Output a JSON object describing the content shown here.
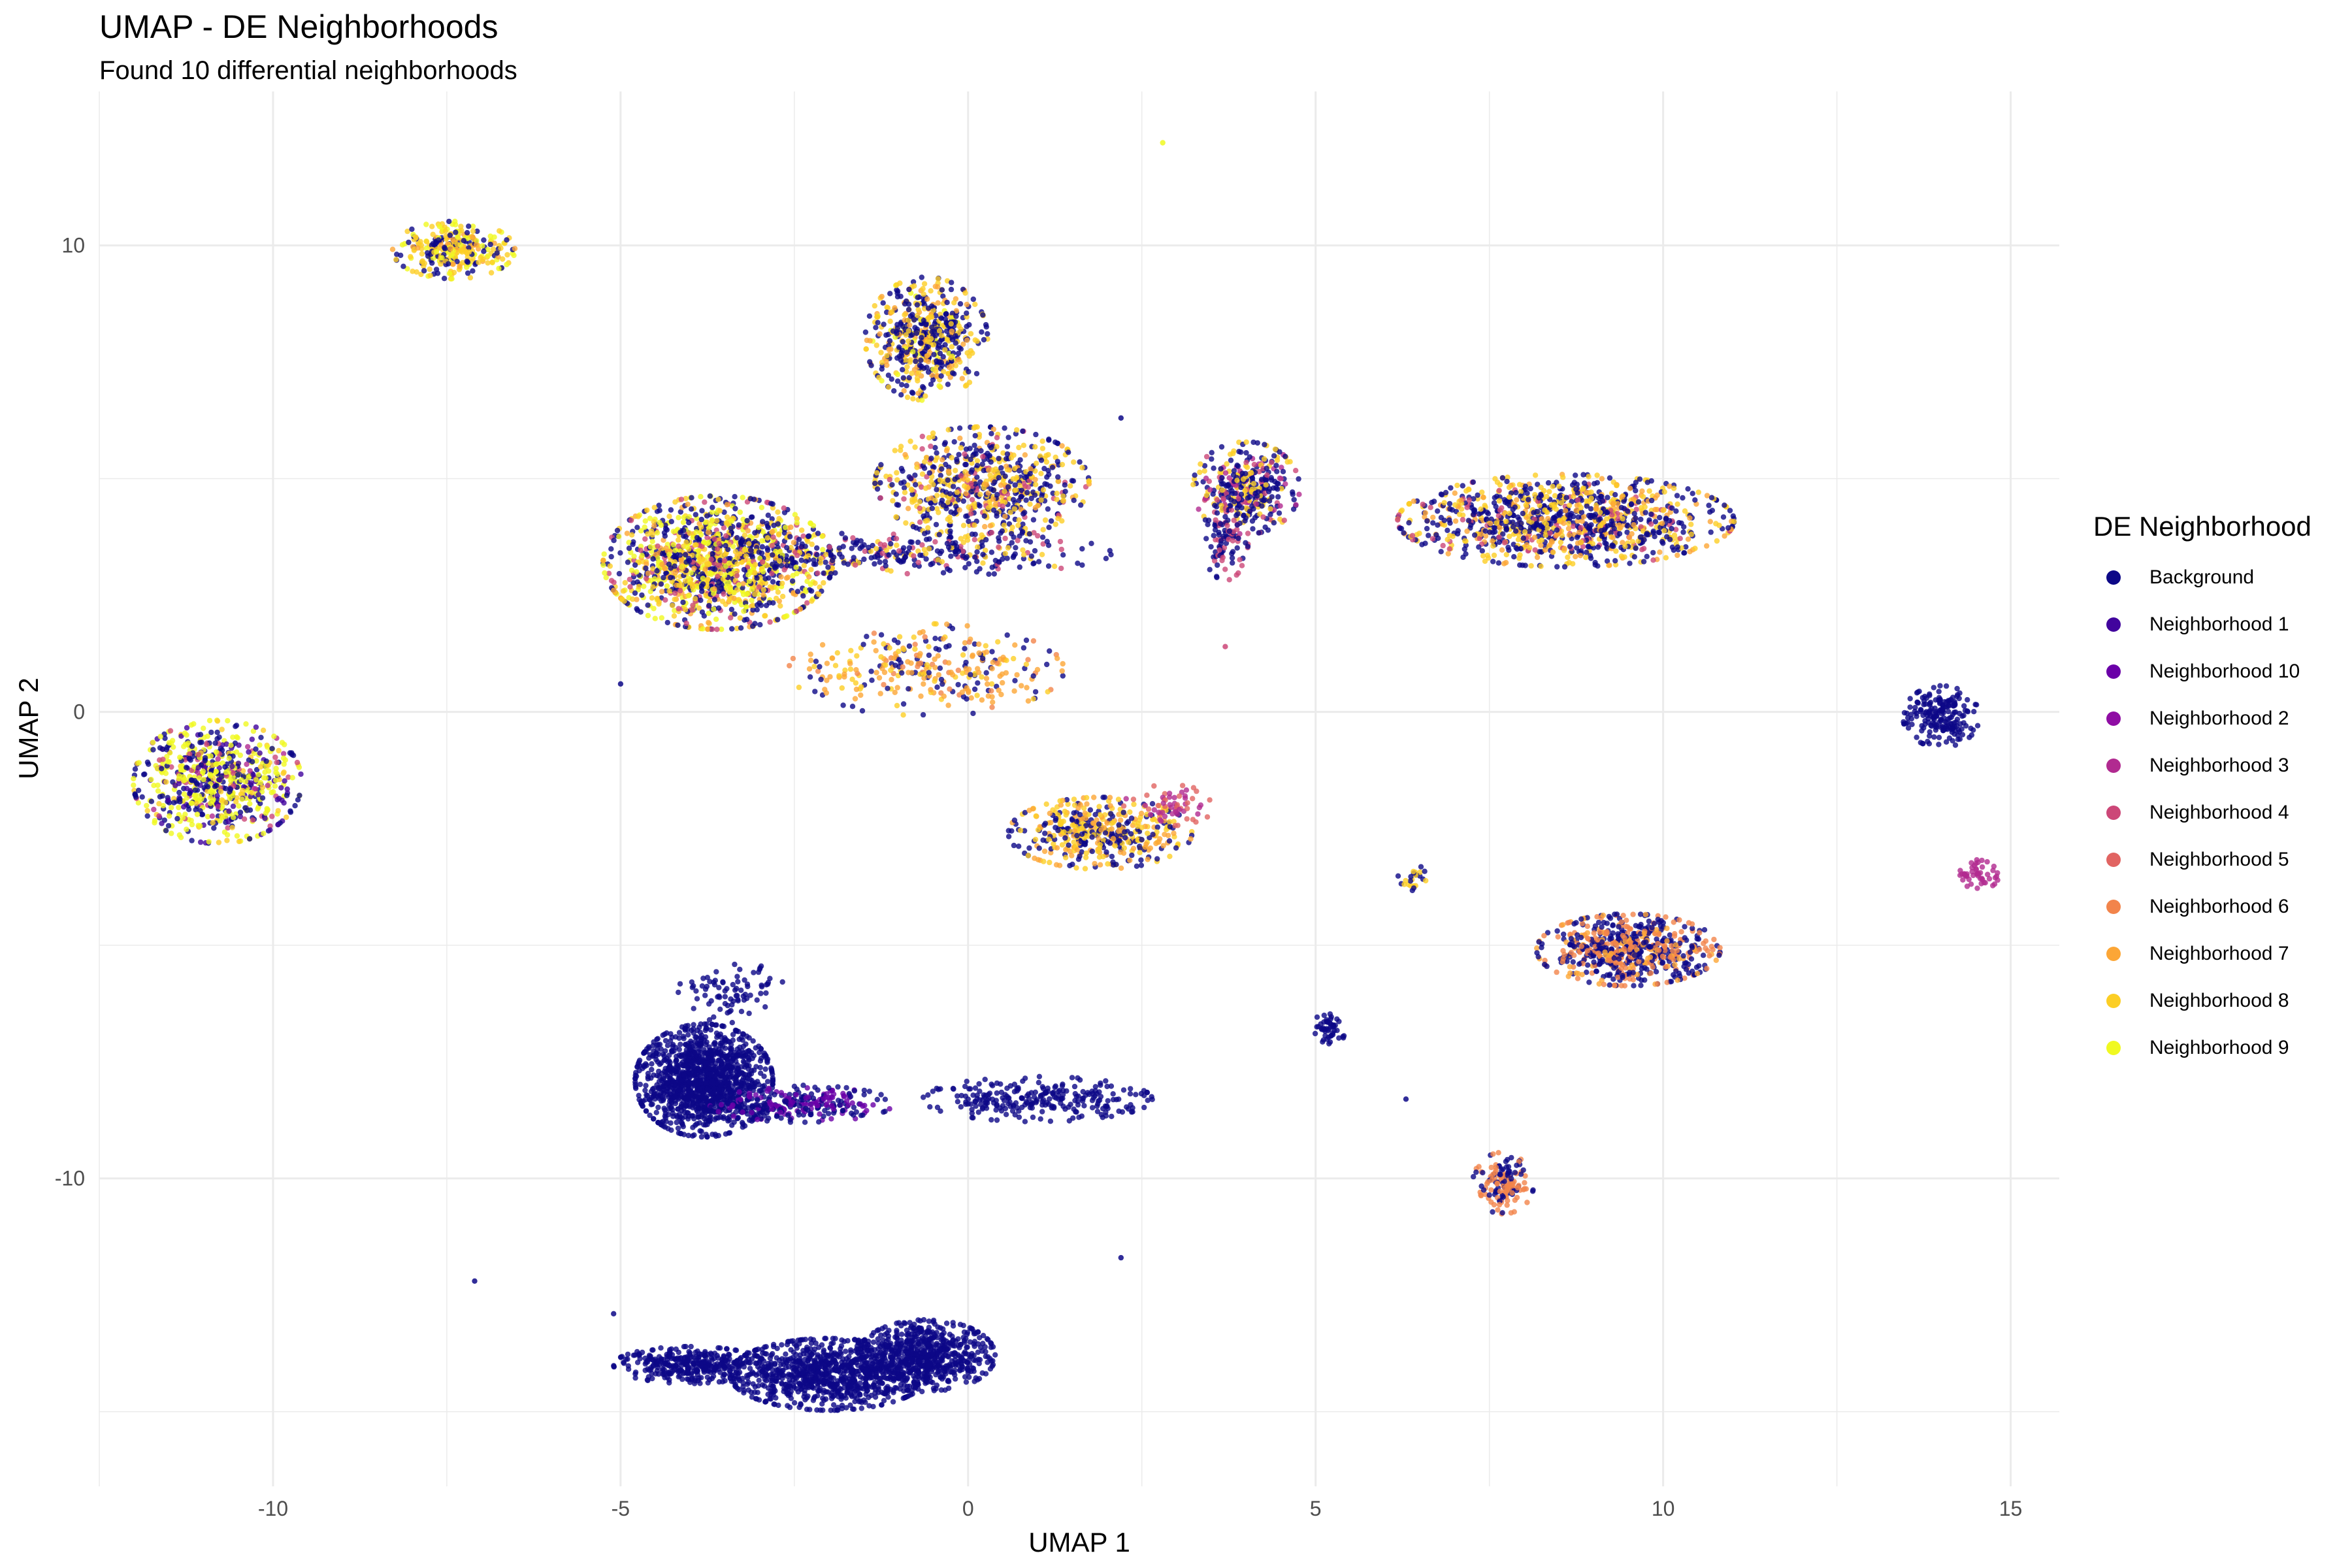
{
  "chart_data": {
    "type": "scatter",
    "title": "UMAP - DE Neighborhoods",
    "subtitle": "Found 10 differential neighborhoods",
    "xlabel": "UMAP 1",
    "ylabel": "UMAP 2",
    "xlim": [
      -12.5,
      15.7
    ],
    "ylim": [
      -16.6,
      13.3
    ],
    "x_ticks": [
      -10,
      -5,
      0,
      5,
      10,
      15
    ],
    "y_ticks": [
      -10,
      0,
      10
    ],
    "grid": true,
    "legend": {
      "title": "DE Neighborhood",
      "position": "right",
      "entries": [
        {
          "name": "Background",
          "color": "#0d0887"
        },
        {
          "name": "Neighborhood 1",
          "color": "#41049d"
        },
        {
          "name": "Neighborhood 10",
          "color": "#6a00a8"
        },
        {
          "name": "Neighborhood 2",
          "color": "#8f0da4"
        },
        {
          "name": "Neighborhood 3",
          "color": "#b12a90"
        },
        {
          "name": "Neighborhood 4",
          "color": "#cc4778"
        },
        {
          "name": "Neighborhood 5",
          "color": "#e16462"
        },
        {
          "name": "Neighborhood 6",
          "color": "#f2844b"
        },
        {
          "name": "Neighborhood 7",
          "color": "#fca636"
        },
        {
          "name": "Neighborhood 8",
          "color": "#fcce25"
        },
        {
          "name": "Neighborhood 9",
          "color": "#f0f921"
        }
      ]
    },
    "clusters": [
      {
        "x": -10.8,
        "y": -1.5,
        "sx": 0.55,
        "sy": 0.6,
        "n": 700,
        "mix": {
          "Neighborhood 9": 0.35,
          "Background": 0.3,
          "Neighborhood 1": 0.1,
          "Neighborhood 8": 0.1,
          "Neighborhood 4": 0.1,
          "Neighborhood 3": 0.05
        }
      },
      {
        "x": -7.4,
        "y": 9.9,
        "sx": 0.4,
        "sy": 0.28,
        "n": 300,
        "mix": {
          "Neighborhood 8": 0.4,
          "Background": 0.3,
          "Neighborhood 9": 0.2,
          "Neighborhood 7": 0.1
        }
      },
      {
        "x": -0.6,
        "y": 8.0,
        "sx": 0.4,
        "sy": 0.6,
        "n": 550,
        "mix": {
          "Background": 0.45,
          "Neighborhood 8": 0.35,
          "Neighborhood 7": 0.15,
          "Neighborhood 9": 0.05
        }
      },
      {
        "x": -3.6,
        "y": 3.2,
        "sx": 0.75,
        "sy": 0.65,
        "n": 1300,
        "mix": {
          "Background": 0.35,
          "Neighborhood 9": 0.25,
          "Neighborhood 8": 0.2,
          "Neighborhood 7": 0.1,
          "Neighborhood 4": 0.1
        }
      },
      {
        "x": 0.2,
        "y": 4.9,
        "sx": 0.7,
        "sy": 0.55,
        "n": 700,
        "mix": {
          "Background": 0.45,
          "Neighborhood 8": 0.35,
          "Neighborhood 7": 0.1,
          "Neighborhood 4": 0.1
        }
      },
      {
        "x": -0.8,
        "y": 3.4,
        "sx": 1.3,
        "sy": 0.22,
        "n": 300,
        "mix": {
          "Background": 0.6,
          "Neighborhood 4": 0.2,
          "Neighborhood 8": 0.2
        }
      },
      {
        "x": -0.6,
        "y": 0.9,
        "sx": 0.9,
        "sy": 0.45,
        "n": 300,
        "mix": {
          "Neighborhood 7": 0.4,
          "Neighborhood 8": 0.2,
          "Background": 0.3,
          "Neighborhood 6": 0.1
        }
      },
      {
        "x": 4.0,
        "y": 4.8,
        "sx": 0.35,
        "sy": 0.45,
        "n": 350,
        "mix": {
          "Background": 0.5,
          "Neighborhood 8": 0.3,
          "Neighborhood 4": 0.1,
          "Neighborhood 3": 0.1
        }
      },
      {
        "x": 3.7,
        "y": 3.7,
        "sx": 0.15,
        "sy": 0.4,
        "n": 100,
        "mix": {
          "Background": 0.6,
          "Neighborhood 4": 0.4
        }
      },
      {
        "x": 8.6,
        "y": 4.1,
        "sx": 1.1,
        "sy": 0.45,
        "n": 1100,
        "mix": {
          "Background": 0.45,
          "Neighborhood 8": 0.3,
          "Neighborhood 7": 0.15,
          "Neighborhood 4": 0.1
        }
      },
      {
        "x": 1.9,
        "y": -2.6,
        "sx": 0.6,
        "sy": 0.35,
        "n": 450,
        "mix": {
          "Background": 0.4,
          "Neighborhood 8": 0.35,
          "Neighborhood 7": 0.25
        }
      },
      {
        "x": 2.9,
        "y": -2.0,
        "sx": 0.3,
        "sy": 0.2,
        "n": 60,
        "mix": {
          "Neighborhood 5": 0.5,
          "Neighborhood 3": 0.5
        }
      },
      {
        "x": 14.0,
        "y": -0.1,
        "sx": 0.25,
        "sy": 0.3,
        "n": 200,
        "mix": {
          "Background": 1.0
        }
      },
      {
        "x": 14.5,
        "y": -3.5,
        "sx": 0.15,
        "sy": 0.15,
        "n": 50,
        "mix": {
          "Neighborhood 3": 1.0
        }
      },
      {
        "x": 9.5,
        "y": -5.1,
        "sx": 0.6,
        "sy": 0.35,
        "n": 650,
        "mix": {
          "Background": 0.5,
          "Neighborhood 6": 0.35,
          "Neighborhood 7": 0.15
        }
      },
      {
        "x": 7.7,
        "y": -10.1,
        "sx": 0.2,
        "sy": 0.3,
        "n": 150,
        "mix": {
          "Neighborhood 6": 0.6,
          "Background": 0.4
        }
      },
      {
        "x": -3.8,
        "y": -7.9,
        "sx": 0.45,
        "sy": 0.55,
        "n": 1300,
        "mix": {
          "Background": 1.0
        }
      },
      {
        "x": -2.4,
        "y": -8.4,
        "sx": 0.6,
        "sy": 0.18,
        "n": 250,
        "mix": {
          "Background": 0.5,
          "Neighborhood 10": 0.5
        }
      },
      {
        "x": -3.4,
        "y": -6.0,
        "sx": 0.35,
        "sy": 0.3,
        "n": 80,
        "mix": {
          "Background": 1.0
        }
      },
      {
        "x": 1.0,
        "y": -8.3,
        "sx": 0.75,
        "sy": 0.22,
        "n": 260,
        "mix": {
          "Background": 1.0
        }
      },
      {
        "x": 5.2,
        "y": -6.8,
        "sx": 0.1,
        "sy": 0.2,
        "n": 50,
        "mix": {
          "Background": 1.0
        }
      },
      {
        "x": 6.4,
        "y": -3.6,
        "sx": 0.1,
        "sy": 0.15,
        "n": 25,
        "mix": {
          "Background": 0.5,
          "Neighborhood 8": 0.5
        }
      },
      {
        "x": -4.0,
        "y": -14.0,
        "sx": 0.5,
        "sy": 0.18,
        "n": 350,
        "mix": {
          "Background": 1.0
        }
      },
      {
        "x": -2.0,
        "y": -14.2,
        "sx": 0.65,
        "sy": 0.35,
        "n": 900,
        "mix": {
          "Background": 1.0
        }
      },
      {
        "x": -0.6,
        "y": -13.8,
        "sx": 0.45,
        "sy": 0.35,
        "n": 650,
        "mix": {
          "Background": 1.0
        }
      }
    ],
    "outliers": [
      {
        "x": 2.8,
        "y": 12.2,
        "group": "Neighborhood 9"
      },
      {
        "x": 2.2,
        "y": 6.3,
        "group": "Background"
      },
      {
        "x": -5.0,
        "y": 0.6,
        "group": "Background"
      },
      {
        "x": -7.1,
        "y": -12.2,
        "group": "Background"
      },
      {
        "x": -5.1,
        "y": -12.9,
        "group": "Background"
      },
      {
        "x": 2.2,
        "y": -11.7,
        "group": "Background"
      },
      {
        "x": 6.3,
        "y": -8.3,
        "group": "Background"
      },
      {
        "x": 3.7,
        "y": 1.4,
        "group": "Neighborhood 4"
      }
    ]
  }
}
